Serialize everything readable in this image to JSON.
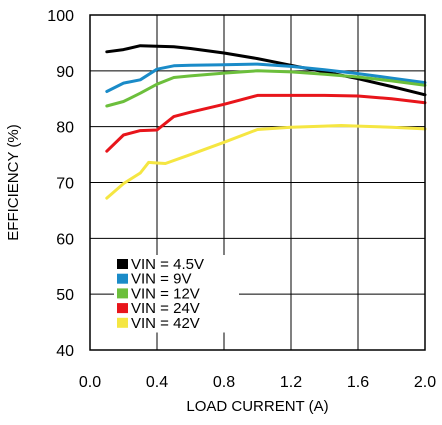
{
  "chart_data": {
    "type": "line",
    "xlabel": "LOAD CURRENT (A)",
    "ylabel": "EFFICIENCY (%)",
    "xlim": [
      0.0,
      2.0
    ],
    "ylim": [
      40,
      100
    ],
    "x_ticks": [
      "0.0",
      "0.4",
      "0.8",
      "1.2",
      "1.6",
      "2.0"
    ],
    "y_ticks": [
      "40",
      "50",
      "60",
      "70",
      "80",
      "90",
      "100"
    ],
    "grid": true,
    "legend_position": "bottom-left",
    "series": [
      {
        "name": "VIN = 4.5V",
        "color": "#000000",
        "x": [
          0.1,
          0.2,
          0.3,
          0.4,
          0.5,
          0.6,
          0.8,
          1.0,
          1.2,
          1.4,
          1.6,
          1.8,
          2.0
        ],
        "y": [
          93.4,
          93.8,
          94.5,
          94.4,
          94.3,
          94.0,
          93.2,
          92.2,
          91.0,
          89.8,
          88.6,
          87.2,
          85.7
        ]
      },
      {
        "name": "VIN = 9V",
        "color": "#1a8bc8",
        "x": [
          0.1,
          0.2,
          0.3,
          0.4,
          0.5,
          0.6,
          0.8,
          1.0,
          1.2,
          1.4,
          1.6,
          1.8,
          2.0
        ],
        "y": [
          86.3,
          87.8,
          88.4,
          90.3,
          90.9,
          91.0,
          91.1,
          91.2,
          90.8,
          90.2,
          89.5,
          88.7,
          87.9
        ]
      },
      {
        "name": "VIN = 12V",
        "color": "#6cbf3c",
        "x": [
          0.1,
          0.2,
          0.3,
          0.4,
          0.5,
          0.6,
          0.8,
          1.0,
          1.2,
          1.4,
          1.6,
          1.8,
          2.0
        ],
        "y": [
          83.7,
          84.5,
          86.0,
          87.6,
          88.8,
          89.1,
          89.6,
          90.0,
          89.8,
          89.4,
          88.9,
          88.2,
          87.4
        ]
      },
      {
        "name": "VIN = 24V",
        "color": "#e8151b",
        "x": [
          0.1,
          0.2,
          0.3,
          0.4,
          0.5,
          0.6,
          0.8,
          1.0,
          1.2,
          1.4,
          1.6,
          1.8,
          2.0
        ],
        "y": [
          75.6,
          78.5,
          79.3,
          79.4,
          81.8,
          82.6,
          84.0,
          85.6,
          85.6,
          85.6,
          85.5,
          85.0,
          84.3
        ]
      },
      {
        "name": "VIN = 42V",
        "color": "#f5e642",
        "x": [
          0.1,
          0.2,
          0.3,
          0.35,
          0.4,
          0.45,
          0.6,
          0.8,
          1.0,
          1.2,
          1.4,
          1.5,
          1.6,
          1.8,
          2.0
        ],
        "y": [
          67.2,
          69.8,
          71.7,
          73.6,
          73.5,
          73.4,
          75.0,
          77.2,
          79.5,
          79.9,
          80.1,
          80.2,
          80.1,
          79.9,
          79.6
        ]
      }
    ]
  }
}
